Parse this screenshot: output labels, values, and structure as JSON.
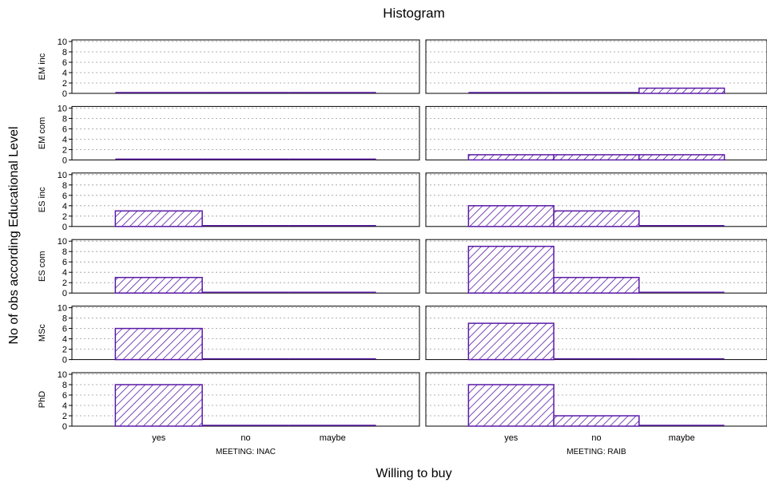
{
  "chart_data": {
    "type": "bar",
    "title": "Histogram",
    "xlabel": "Willing to buy",
    "ylabel": "No of obs according Educational Level",
    "categories": [
      "yes",
      "no",
      "maybe"
    ],
    "ylim": [
      0,
      10
    ],
    "yticks": [
      0,
      2,
      4,
      6,
      8,
      10
    ],
    "grid": true,
    "colors": {
      "bar_stroke": "#5a1aa6",
      "hatch": "#5a1aa6",
      "axis": "#000000",
      "grid": "#999999"
    },
    "columns": [
      "MEETING: INAC",
      "MEETING: RAIB"
    ],
    "rows": [
      "EM inc",
      "EM com",
      "ES inc",
      "ES com",
      "MSc",
      "PhD"
    ],
    "panels": [
      {
        "row": "EM inc",
        "column": "MEETING: INAC",
        "values": [
          0,
          0,
          0
        ]
      },
      {
        "row": "EM inc",
        "column": "MEETING: RAIB",
        "values": [
          0,
          0,
          1
        ]
      },
      {
        "row": "EM com",
        "column": "MEETING: INAC",
        "values": [
          0,
          0,
          0
        ]
      },
      {
        "row": "EM com",
        "column": "MEETING: RAIB",
        "values": [
          1,
          1,
          1
        ]
      },
      {
        "row": "ES inc",
        "column": "MEETING: INAC",
        "values": [
          3,
          0,
          0
        ]
      },
      {
        "row": "ES inc",
        "column": "MEETING: RAIB",
        "values": [
          4,
          3,
          0
        ]
      },
      {
        "row": "ES com",
        "column": "MEETING: INAC",
        "values": [
          3,
          0,
          0
        ]
      },
      {
        "row": "ES com",
        "column": "MEETING: RAIB",
        "values": [
          9,
          3,
          0
        ]
      },
      {
        "row": "MSc",
        "column": "MEETING: INAC",
        "values": [
          6,
          0,
          0
        ]
      },
      {
        "row": "MSc",
        "column": "MEETING: RAIB",
        "values": [
          7,
          0,
          0
        ]
      },
      {
        "row": "PhD",
        "column": "MEETING: INAC",
        "values": [
          8,
          0,
          0
        ]
      },
      {
        "row": "PhD",
        "column": "MEETING: RAIB",
        "values": [
          8,
          2,
          0
        ]
      }
    ]
  }
}
